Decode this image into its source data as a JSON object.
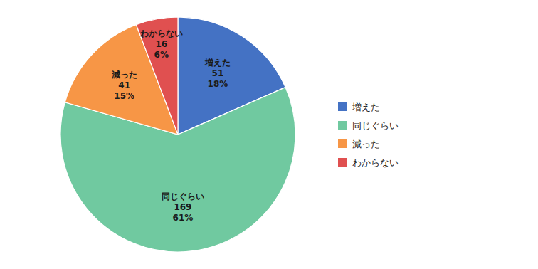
{
  "chart_data": {
    "type": "pie",
    "categories": [
      "増えた",
      "同じぐらい",
      "減った",
      "わからない"
    ],
    "values": [
      51,
      169,
      41,
      16
    ],
    "percentages": [
      {
        "value": 18,
        "label": "18%"
      },
      {
        "value": 61,
        "label": "61%"
      },
      {
        "value": 15,
        "label": "15%"
      },
      {
        "value": 6,
        "label": "6%"
      }
    ],
    "colors": [
      "#4472C4",
      "#70C9A0",
      "#F79646",
      "#E05050"
    ],
    "data_labels": true,
    "legend": "right"
  }
}
